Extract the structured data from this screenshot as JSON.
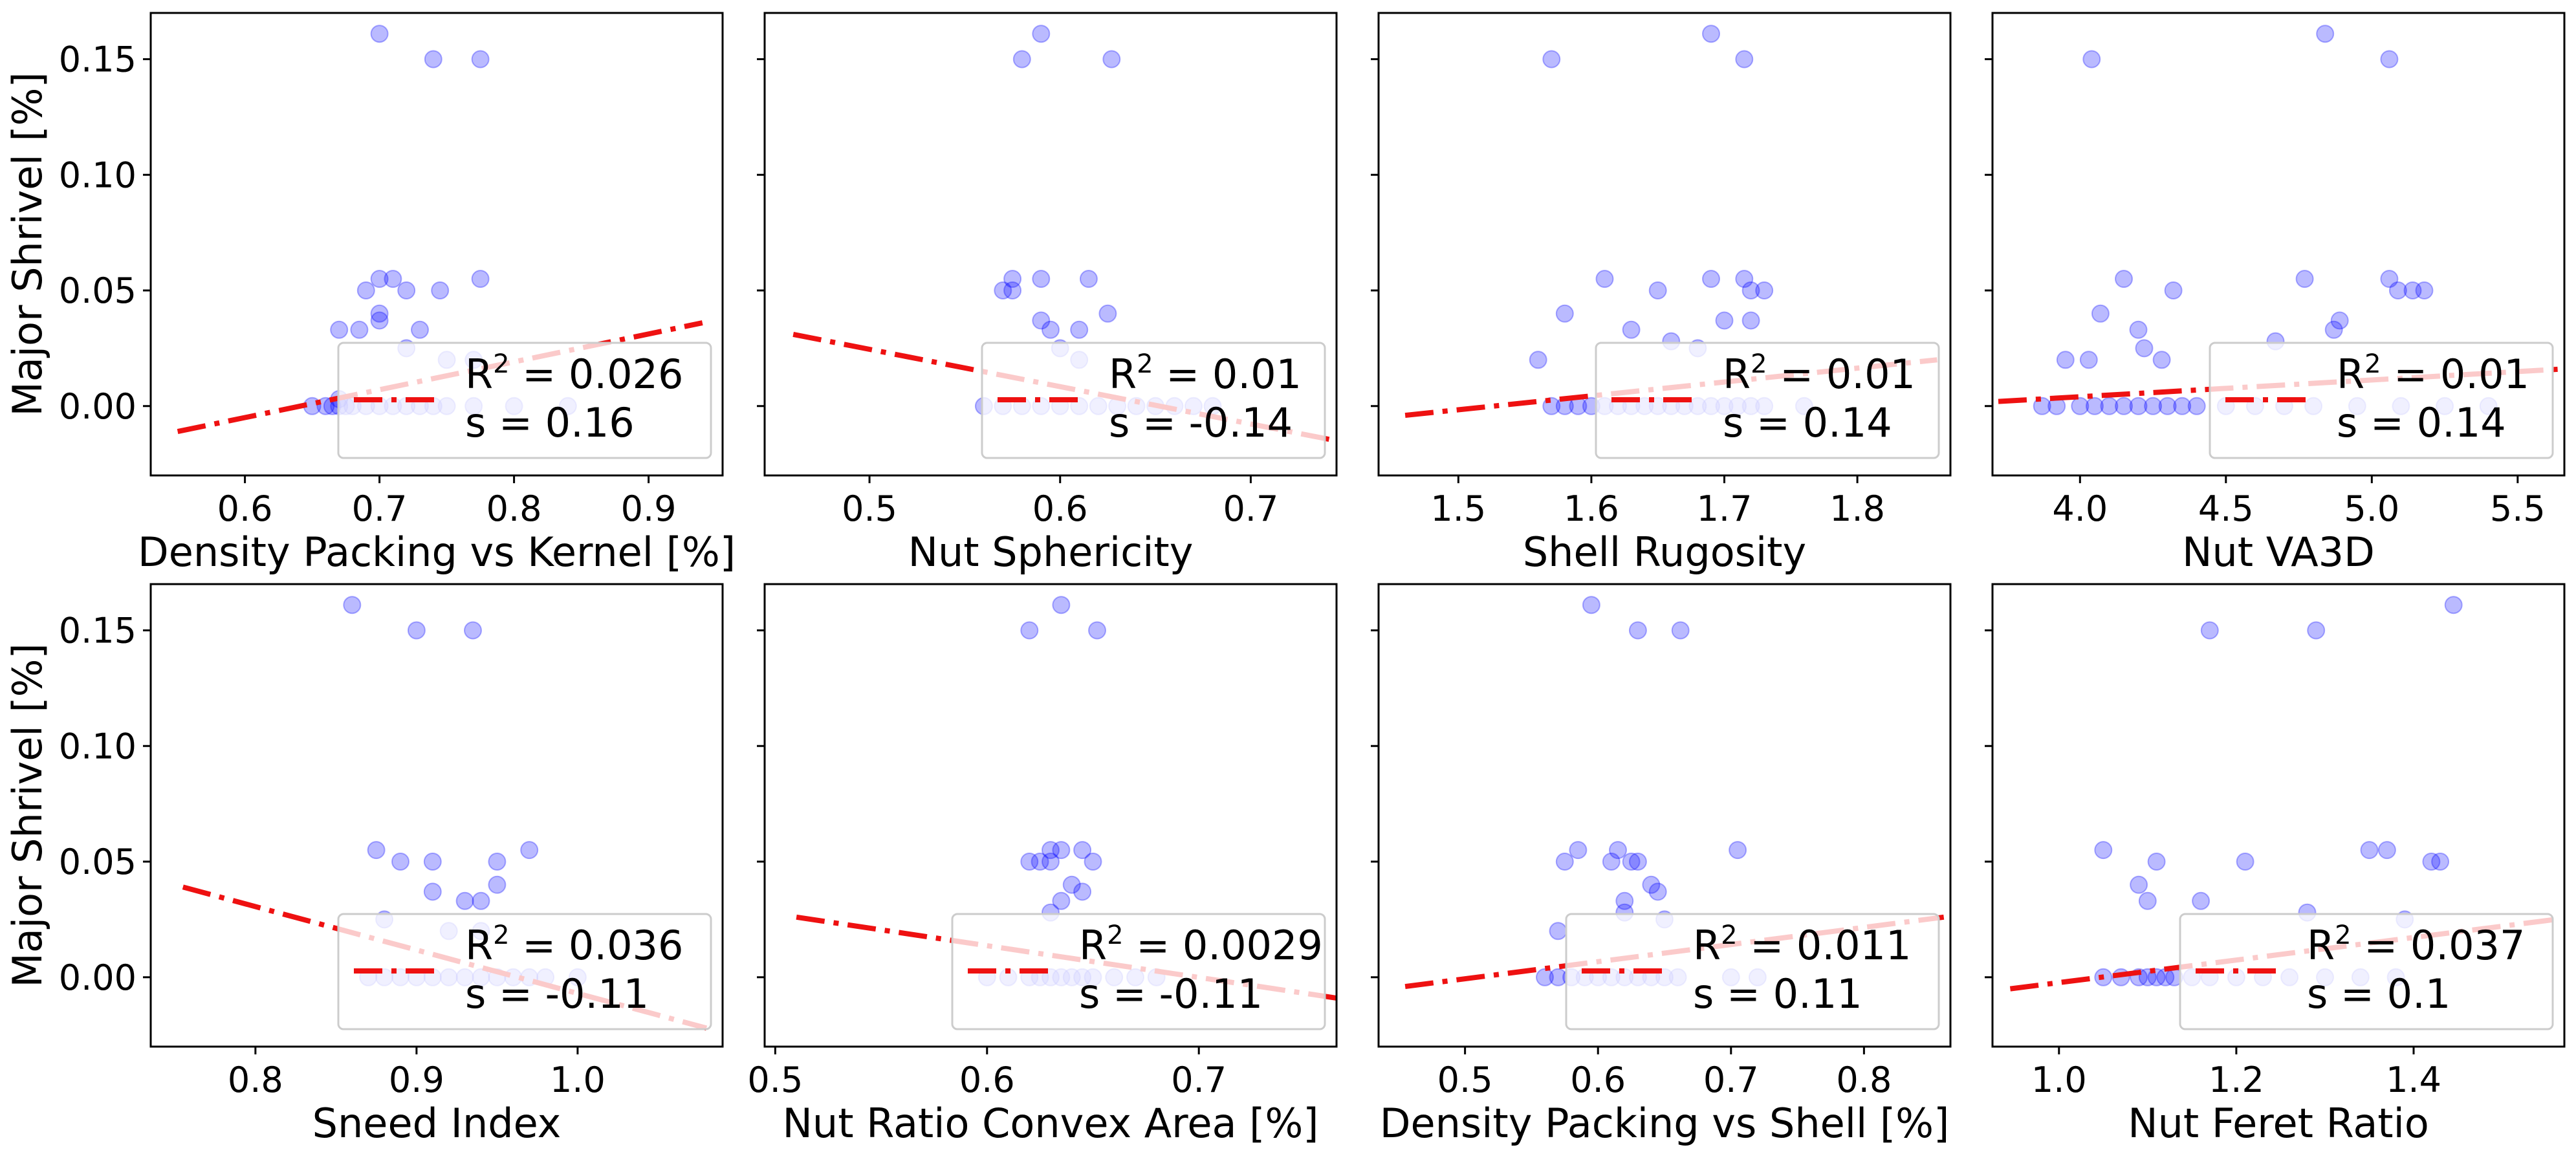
{
  "colors": {
    "points": "#0000ff",
    "fit": "#ee1111",
    "legend_edge": "#cccccc"
  },
  "shared": {
    "ylabel": "Major Shrivel [%]",
    "ylim": [
      -0.03,
      0.17
    ],
    "yticks": [
      "0.00",
      "0.05",
      "0.10",
      "0.15"
    ],
    "yvals": [
      0,
      0.05,
      0.1,
      0.15
    ]
  },
  "chart_data": [
    {
      "type": "scatter",
      "xlabel": "Density Packing vs Kernel [%]",
      "xlim": [
        0.53,
        0.955
      ],
      "xticks": [
        0.6,
        0.7,
        0.8,
        0.9
      ],
      "xtick_labels": [
        "0.6",
        "0.7",
        "0.8",
        "0.9"
      ],
      "ylabel": "Major Shrivel [%]",
      "fit": {
        "x": [
          0.55,
          0.94
        ],
        "y": [
          -0.011,
          0.036
        ]
      },
      "legend": {
        "r2": "0.026",
        "s": "0.16"
      },
      "points": [
        [
          0.7,
          0.161
        ],
        [
          0.74,
          0.15
        ],
        [
          0.775,
          0.15
        ],
        [
          0.7,
          0.055
        ],
        [
          0.71,
          0.055
        ],
        [
          0.775,
          0.055
        ],
        [
          0.69,
          0.05
        ],
        [
          0.72,
          0.05
        ],
        [
          0.745,
          0.05
        ],
        [
          0.7,
          0.04
        ],
        [
          0.7,
          0.037
        ],
        [
          0.67,
          0.033
        ],
        [
          0.685,
          0.033
        ],
        [
          0.73,
          0.033
        ],
        [
          0.72,
          0.025
        ],
        [
          0.75,
          0.02
        ],
        [
          0.77,
          0.02
        ],
        [
          0.65,
          0.0
        ],
        [
          0.66,
          0.0
        ],
        [
          0.665,
          0.0
        ],
        [
          0.67,
          0.0
        ],
        [
          0.675,
          0.0
        ],
        [
          0.68,
          0.0
        ],
        [
          0.69,
          0.0
        ],
        [
          0.7,
          0.0
        ],
        [
          0.71,
          0.0
        ],
        [
          0.72,
          0.0
        ],
        [
          0.73,
          0.0
        ],
        [
          0.74,
          0.0
        ],
        [
          0.75,
          0.0
        ],
        [
          0.77,
          0.0
        ],
        [
          0.8,
          0.0
        ],
        [
          0.84,
          0.0
        ],
        [
          0.67,
          0.003
        ]
      ]
    },
    {
      "type": "scatter",
      "xlabel": "Nut Sphericity",
      "xlim": [
        0.445,
        0.745
      ],
      "xticks": [
        0.5,
        0.6,
        0.7
      ],
      "xtick_labels": [
        "0.5",
        "0.6",
        "0.7"
      ],
      "ylabel": "",
      "fit": {
        "x": [
          0.46,
          0.745
        ],
        "y": [
          0.031,
          -0.015
        ]
      },
      "legend": {
        "r2": "0.01",
        "s": "-0.14"
      },
      "points": [
        [
          0.59,
          0.161
        ],
        [
          0.58,
          0.15
        ],
        [
          0.627,
          0.15
        ],
        [
          0.575,
          0.055
        ],
        [
          0.59,
          0.055
        ],
        [
          0.615,
          0.055
        ],
        [
          0.57,
          0.05
        ],
        [
          0.575,
          0.05
        ],
        [
          0.59,
          0.037
        ],
        [
          0.595,
          0.033
        ],
        [
          0.61,
          0.033
        ],
        [
          0.625,
          0.04
        ],
        [
          0.6,
          0.025
        ],
        [
          0.61,
          0.02
        ],
        [
          0.56,
          0.0
        ],
        [
          0.57,
          0.0
        ],
        [
          0.58,
          0.0
        ],
        [
          0.59,
          0.0
        ],
        [
          0.6,
          0.0
        ],
        [
          0.61,
          0.0
        ],
        [
          0.62,
          0.0
        ],
        [
          0.63,
          0.0
        ],
        [
          0.64,
          0.0
        ],
        [
          0.65,
          0.0
        ],
        [
          0.66,
          0.0
        ],
        [
          0.67,
          0.0
        ],
        [
          0.68,
          0.0
        ]
      ]
    },
    {
      "type": "scatter",
      "xlabel": "Shell Rugosity",
      "xlim": [
        1.44,
        1.87
      ],
      "xticks": [
        1.5,
        1.6,
        1.7,
        1.8
      ],
      "xtick_labels": [
        "1.5",
        "1.6",
        "1.7",
        "1.8"
      ],
      "ylabel": "",
      "fit": {
        "x": [
          1.46,
          1.86
        ],
        "y": [
          -0.004,
          0.02
        ]
      },
      "legend": {
        "r2": "0.01",
        "s": "0.14"
      },
      "points": [
        [
          1.69,
          0.161
        ],
        [
          1.57,
          0.15
        ],
        [
          1.715,
          0.15
        ],
        [
          1.61,
          0.055
        ],
        [
          1.69,
          0.055
        ],
        [
          1.715,
          0.055
        ],
        [
          1.65,
          0.05
        ],
        [
          1.72,
          0.05
        ],
        [
          1.73,
          0.05
        ],
        [
          1.58,
          0.04
        ],
        [
          1.7,
          0.037
        ],
        [
          1.72,
          0.037
        ],
        [
          1.63,
          0.033
        ],
        [
          1.66,
          0.028
        ],
        [
          1.68,
          0.025
        ],
        [
          1.56,
          0.02
        ],
        [
          1.57,
          0.0
        ],
        [
          1.58,
          0.0
        ],
        [
          1.59,
          0.0
        ],
        [
          1.6,
          0.0
        ],
        [
          1.61,
          0.0
        ],
        [
          1.62,
          0.0
        ],
        [
          1.63,
          0.0
        ],
        [
          1.64,
          0.0
        ],
        [
          1.65,
          0.0
        ],
        [
          1.66,
          0.0
        ],
        [
          1.67,
          0.0
        ],
        [
          1.68,
          0.0
        ],
        [
          1.69,
          0.0
        ],
        [
          1.7,
          0.0
        ],
        [
          1.71,
          0.0
        ],
        [
          1.72,
          0.0
        ],
        [
          1.73,
          0.0
        ],
        [
          1.76,
          0.0
        ]
      ]
    },
    {
      "type": "scatter",
      "xlabel": "Nut VA3D",
      "xlim": [
        3.7,
        5.66
      ],
      "xticks": [
        4.0,
        4.5,
        5.0,
        5.5
      ],
      "xtick_labels": [
        "4.0",
        "4.5",
        "5.0",
        "5.5"
      ],
      "ylabel": "",
      "fit": {
        "x": [
          3.72,
          5.65
        ],
        "y": [
          0.002,
          0.016
        ]
      },
      "legend": {
        "r2": "0.01",
        "s": "0.14"
      },
      "points": [
        [
          4.84,
          0.161
        ],
        [
          4.04,
          0.15
        ],
        [
          5.06,
          0.15
        ],
        [
          4.15,
          0.055
        ],
        [
          4.77,
          0.055
        ],
        [
          5.06,
          0.055
        ],
        [
          4.32,
          0.05
        ],
        [
          5.09,
          0.05
        ],
        [
          5.14,
          0.05
        ],
        [
          5.18,
          0.05
        ],
        [
          4.07,
          0.04
        ],
        [
          4.89,
          0.037
        ],
        [
          4.87,
          0.033
        ],
        [
          4.2,
          0.033
        ],
        [
          4.22,
          0.025
        ],
        [
          4.67,
          0.028
        ],
        [
          3.95,
          0.02
        ],
        [
          4.28,
          0.02
        ],
        [
          4.03,
          0.02
        ],
        [
          3.87,
          0.0
        ],
        [
          3.92,
          0.0
        ],
        [
          4.0,
          0.0
        ],
        [
          4.05,
          0.0
        ],
        [
          4.1,
          0.0
        ],
        [
          4.15,
          0.0
        ],
        [
          4.2,
          0.0
        ],
        [
          4.25,
          0.0
        ],
        [
          4.3,
          0.0
        ],
        [
          4.35,
          0.0
        ],
        [
          4.4,
          0.0
        ],
        [
          4.5,
          0.0
        ],
        [
          4.6,
          0.0
        ],
        [
          4.7,
          0.0
        ],
        [
          4.8,
          0.0
        ],
        [
          4.95,
          0.0
        ],
        [
          5.1,
          0.0
        ],
        [
          5.25,
          0.0
        ],
        [
          5.4,
          0.0
        ]
      ]
    },
    {
      "type": "scatter",
      "xlabel": "Sneed Index",
      "xlim": [
        0.735,
        1.09
      ],
      "xticks": [
        0.8,
        0.9,
        1.0
      ],
      "xtick_labels": [
        "0.8",
        "0.9",
        "1.0"
      ],
      "ylabel": "Major Shrivel [%]",
      "fit": {
        "x": [
          0.755,
          1.08
        ],
        "y": [
          0.039,
          -0.022
        ]
      },
      "legend": {
        "r2": "0.036",
        "s": "-0.11"
      },
      "points": [
        [
          0.86,
          0.161
        ],
        [
          0.9,
          0.15
        ],
        [
          0.935,
          0.15
        ],
        [
          0.97,
          0.055
        ],
        [
          0.875,
          0.055
        ],
        [
          0.89,
          0.05
        ],
        [
          0.91,
          0.05
        ],
        [
          0.95,
          0.05
        ],
        [
          0.91,
          0.037
        ],
        [
          0.93,
          0.033
        ],
        [
          0.94,
          0.033
        ],
        [
          0.95,
          0.04
        ],
        [
          0.88,
          0.025
        ],
        [
          0.92,
          0.02
        ],
        [
          0.94,
          0.02
        ],
        [
          0.87,
          0.0
        ],
        [
          0.88,
          0.0
        ],
        [
          0.89,
          0.0
        ],
        [
          0.9,
          0.0
        ],
        [
          0.91,
          0.0
        ],
        [
          0.92,
          0.0
        ],
        [
          0.93,
          0.0
        ],
        [
          0.94,
          0.0
        ],
        [
          0.95,
          0.0
        ],
        [
          0.96,
          0.0
        ],
        [
          0.97,
          0.0
        ],
        [
          0.98,
          0.0
        ],
        [
          1.0,
          0.0
        ]
      ]
    },
    {
      "type": "scatter",
      "xlabel": "Nut Ratio Convex Area [%]",
      "xlim": [
        0.495,
        0.765
      ],
      "xticks": [
        0.5,
        0.6,
        0.7
      ],
      "xtick_labels": [
        "0.5",
        "0.6",
        "0.7"
      ],
      "ylabel": "",
      "fit": {
        "x": [
          0.51,
          0.765
        ],
        "y": [
          0.026,
          -0.009
        ]
      },
      "legend": {
        "r2": "0.0029",
        "s": "-0.11"
      },
      "points": [
        [
          0.635,
          0.161
        ],
        [
          0.62,
          0.15
        ],
        [
          0.652,
          0.15
        ],
        [
          0.63,
          0.055
        ],
        [
          0.645,
          0.055
        ],
        [
          0.635,
          0.055
        ],
        [
          0.62,
          0.05
        ],
        [
          0.625,
          0.05
        ],
        [
          0.63,
          0.05
        ],
        [
          0.65,
          0.05
        ],
        [
          0.64,
          0.04
        ],
        [
          0.645,
          0.037
        ],
        [
          0.635,
          0.033
        ],
        [
          0.63,
          0.028
        ],
        [
          0.6,
          0.0
        ],
        [
          0.61,
          0.0
        ],
        [
          0.62,
          0.0
        ],
        [
          0.625,
          0.0
        ],
        [
          0.63,
          0.0
        ],
        [
          0.635,
          0.0
        ],
        [
          0.64,
          0.0
        ],
        [
          0.645,
          0.0
        ],
        [
          0.65,
          0.0
        ],
        [
          0.66,
          0.0
        ],
        [
          0.67,
          0.0
        ],
        [
          0.68,
          0.0
        ]
      ]
    },
    {
      "type": "scatter",
      "xlabel": "Density Packing vs Shell [%]",
      "xlim": [
        0.435,
        0.865
      ],
      "xticks": [
        0.5,
        0.6,
        0.7,
        0.8
      ],
      "xtick_labels": [
        "0.5",
        "0.6",
        "0.7",
        "0.8"
      ],
      "ylabel": "",
      "fit": {
        "x": [
          0.455,
          0.86
        ],
        "y": [
          -0.004,
          0.026
        ]
      },
      "legend": {
        "r2": "0.011",
        "s": "0.11"
      },
      "points": [
        [
          0.595,
          0.161
        ],
        [
          0.63,
          0.15
        ],
        [
          0.662,
          0.15
        ],
        [
          0.585,
          0.055
        ],
        [
          0.615,
          0.055
        ],
        [
          0.705,
          0.055
        ],
        [
          0.575,
          0.05
        ],
        [
          0.61,
          0.05
        ],
        [
          0.625,
          0.05
        ],
        [
          0.63,
          0.05
        ],
        [
          0.64,
          0.04
        ],
        [
          0.645,
          0.037
        ],
        [
          0.62,
          0.033
        ],
        [
          0.62,
          0.028
        ],
        [
          0.65,
          0.025
        ],
        [
          0.57,
          0.02
        ],
        [
          0.56,
          0.0
        ],
        [
          0.57,
          0.0
        ],
        [
          0.58,
          0.0
        ],
        [
          0.59,
          0.0
        ],
        [
          0.6,
          0.0
        ],
        [
          0.61,
          0.0
        ],
        [
          0.62,
          0.0
        ],
        [
          0.63,
          0.0
        ],
        [
          0.64,
          0.0
        ],
        [
          0.65,
          0.0
        ],
        [
          0.66,
          0.0
        ],
        [
          0.7,
          0.0
        ],
        [
          0.72,
          0.0
        ]
      ]
    },
    {
      "type": "scatter",
      "xlabel": "Nut Feret Ratio",
      "xlim": [
        0.925,
        1.57
      ],
      "xticks": [
        1.0,
        1.2,
        1.4
      ],
      "xtick_labels": [
        "1.0",
        "1.2",
        "1.4"
      ],
      "ylabel": "",
      "fit": {
        "x": [
          0.945,
          1.56
        ],
        "y": [
          -0.005,
          0.025
        ]
      },
      "legend": {
        "r2": "0.037",
        "s": "0.1"
      },
      "points": [
        [
          1.445,
          0.161
        ],
        [
          1.17,
          0.15
        ],
        [
          1.29,
          0.15
        ],
        [
          1.05,
          0.055
        ],
        [
          1.35,
          0.055
        ],
        [
          1.37,
          0.055
        ],
        [
          1.11,
          0.05
        ],
        [
          1.21,
          0.05
        ],
        [
          1.42,
          0.05
        ],
        [
          1.43,
          0.05
        ],
        [
          1.09,
          0.04
        ],
        [
          1.1,
          0.033
        ],
        [
          1.16,
          0.033
        ],
        [
          1.28,
          0.028
        ],
        [
          1.39,
          0.025
        ],
        [
          1.05,
          0.0
        ],
        [
          1.07,
          0.0
        ],
        [
          1.09,
          0.0
        ],
        [
          1.1,
          0.0
        ],
        [
          1.11,
          0.0
        ],
        [
          1.12,
          0.0
        ],
        [
          1.13,
          0.0
        ],
        [
          1.15,
          0.0
        ],
        [
          1.17,
          0.0
        ],
        [
          1.2,
          0.0
        ],
        [
          1.23,
          0.0
        ],
        [
          1.26,
          0.0
        ],
        [
          1.3,
          0.0
        ],
        [
          1.34,
          0.0
        ],
        [
          1.38,
          0.0
        ]
      ]
    }
  ]
}
